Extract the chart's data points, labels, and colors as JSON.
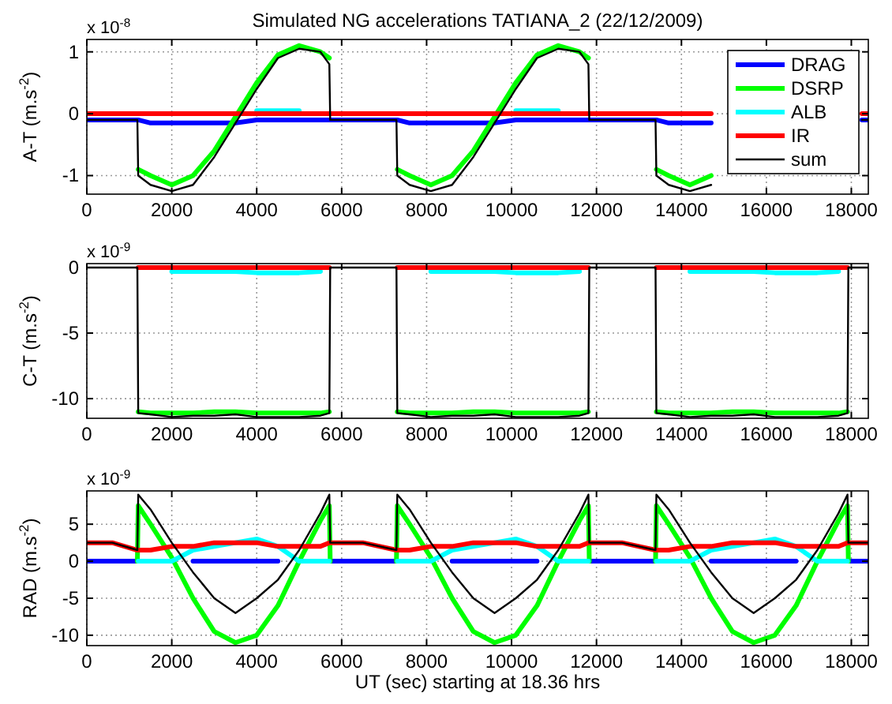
{
  "chart_data": [
    {
      "type": "line",
      "title": "Simulated NG accelerations TATIANA_2 (22/12/2009)",
      "ylabel": "A-T (m.s$^{-2}$)",
      "annotations": [
        "x 10$^{-8}$"
      ],
      "x": [
        0,
        600,
        1190,
        1210,
        1500,
        2000,
        2500,
        3000,
        3500,
        4000,
        4500,
        5000,
        5500,
        5710,
        5730,
        6500,
        7290,
        7310,
        7600,
        8100,
        8600,
        9100,
        9600,
        10100,
        10600,
        11100,
        11600,
        11810,
        11830,
        12600,
        13390,
        13410,
        13700,
        14200,
        14700,
        15200,
        15700,
        16200,
        16700,
        17200,
        17700,
        17910,
        18250,
        18400
      ],
      "xlim": [
        0,
        18400
      ],
      "xticks": [
        0,
        2000,
        4000,
        6000,
        8000,
        10000,
        12000,
        14000,
        16000,
        18000
      ],
      "ylim": [
        -1.3,
        1.2
      ],
      "yticks": [
        -1,
        0,
        1
      ],
      "grid": true,
      "legend": "top right",
      "line_style": "solid",
      "marker": "none",
      "series": [
        {
          "name": "DRAG",
          "color": "#0000ff",
          "values": [
            -0.1,
            -0.1,
            -0.1,
            -0.1,
            -0.15,
            -0.15,
            -0.15,
            -0.15,
            -0.15,
            -0.1,
            -0.1,
            -0.1,
            -0.1,
            -0.1,
            -0.1,
            -0.1,
            -0.1,
            -0.1,
            -0.15,
            -0.15,
            -0.15,
            -0.15,
            -0.15,
            -0.1,
            -0.1,
            -0.1,
            -0.1,
            -0.1,
            -0.1,
            -0.1,
            -0.1,
            -0.1,
            -0.15,
            -0.15,
            -0.15,
            null,
            null,
            null,
            null,
            null,
            null,
            null,
            -0.1,
            -0.1
          ]
        },
        {
          "name": "DSRP",
          "color": "#00ff00",
          "values": [
            null,
            null,
            null,
            -0.9,
            -1.0,
            -1.15,
            -1.0,
            -0.6,
            -0.05,
            0.5,
            0.95,
            1.1,
            1.0,
            0.9,
            null,
            null,
            null,
            -0.9,
            -1.0,
            -1.15,
            -1.0,
            -0.6,
            -0.05,
            0.5,
            0.95,
            1.1,
            1.0,
            0.9,
            null,
            null,
            null,
            -0.9,
            -1.0,
            -1.15,
            -1.0,
            null,
            null,
            null,
            null,
            null,
            null,
            null,
            null,
            null
          ]
        },
        {
          "name": "ALB",
          "color": "#00ffff",
          "values": [
            null,
            null,
            null,
            null,
            null,
            null,
            null,
            null,
            null,
            0.05,
            0.05,
            0.05,
            null,
            null,
            null,
            null,
            null,
            null,
            null,
            null,
            null,
            null,
            null,
            0.05,
            0.05,
            0.05,
            null,
            null,
            null,
            null,
            null,
            null,
            null,
            null,
            null,
            null,
            null,
            null,
            null,
            null,
            null,
            null,
            null,
            null
          ]
        },
        {
          "name": "IR",
          "color": "#ff0000",
          "values": [
            0,
            0,
            0,
            0,
            0,
            0,
            0,
            0,
            0,
            0,
            0,
            0,
            0,
            0,
            0,
            0,
            0,
            0,
            0,
            0,
            0,
            0,
            0,
            0,
            0,
            0,
            0,
            0,
            0,
            0,
            0,
            0,
            0,
            0,
            0,
            null,
            null,
            null,
            null,
            null,
            null,
            null,
            0,
            0
          ]
        },
        {
          "name": "sum",
          "color": "#000000",
          "values": [
            -0.1,
            -0.1,
            -0.1,
            -1.0,
            -1.15,
            -1.25,
            -1.15,
            -0.7,
            -0.15,
            0.4,
            0.9,
            1.05,
            1.0,
            0.8,
            -0.1,
            -0.1,
            -0.1,
            -1.0,
            -1.15,
            -1.25,
            -1.15,
            -0.7,
            -0.15,
            0.4,
            0.9,
            1.05,
            1.0,
            0.8,
            -0.1,
            -0.1,
            -0.1,
            -1.0,
            -1.15,
            -1.25,
            -1.15,
            null,
            null,
            null,
            null,
            null,
            null,
            null,
            -0.1,
            -0.1
          ]
        }
      ]
    },
    {
      "type": "line",
      "ylabel": "C-T (m.s$^{-2}$)",
      "annotations": [
        "x 10$^{-9}$"
      ],
      "x": [
        0,
        600,
        1190,
        1210,
        1500,
        2000,
        2500,
        3000,
        3500,
        4000,
        4500,
        5000,
        5500,
        5710,
        5730,
        6500,
        7290,
        7310,
        7600,
        8100,
        8600,
        9100,
        9600,
        10100,
        10600,
        11100,
        11600,
        11810,
        11830,
        12600,
        13390,
        13410,
        13700,
        14200,
        14700,
        15200,
        15700,
        16200,
        16700,
        17200,
        17700,
        17910,
        17930,
        18400
      ],
      "xlim": [
        0,
        18400
      ],
      "xticks": [
        0,
        2000,
        4000,
        6000,
        8000,
        10000,
        12000,
        14000,
        16000,
        18000
      ],
      "ylim": [
        -11.5,
        0.3
      ],
      "yticks": [
        -10,
        -5,
        0
      ],
      "grid": true,
      "line_style": "solid",
      "marker": "none",
      "series": [
        {
          "color": "#00ff00",
          "values": [
            null,
            null,
            null,
            -11.0,
            -11.1,
            -11.1,
            -11.1,
            -11.0,
            -11.0,
            -11.1,
            -11.1,
            -11.1,
            -11.1,
            -11.0,
            null,
            null,
            null,
            -11.0,
            -11.1,
            -11.1,
            -11.1,
            -11.0,
            -11.0,
            -11.1,
            -11.1,
            -11.1,
            -11.1,
            -11.0,
            null,
            null,
            null,
            -11.0,
            -11.1,
            -11.1,
            -11.1,
            -11.0,
            -11.0,
            -11.1,
            -11.1,
            -11.1,
            -11.1,
            -11.0,
            null,
            null
          ]
        },
        {
          "color": "#00ffff",
          "values": [
            null,
            null,
            null,
            null,
            null,
            -0.3,
            -0.3,
            -0.3,
            -0.3,
            -0.4,
            -0.4,
            -0.4,
            -0.3,
            null,
            null,
            null,
            null,
            null,
            null,
            -0.3,
            -0.3,
            -0.3,
            -0.3,
            -0.4,
            -0.4,
            -0.4,
            -0.3,
            null,
            null,
            null,
            null,
            null,
            null,
            -0.3,
            -0.3,
            -0.3,
            -0.3,
            -0.4,
            -0.4,
            -0.4,
            -0.3,
            null,
            null,
            null
          ]
        },
        {
          "color": "#ff0000",
          "values": [
            null,
            null,
            null,
            0,
            0,
            0,
            0,
            0,
            0,
            0,
            0,
            0,
            0,
            0,
            null,
            null,
            null,
            0,
            0,
            0,
            0,
            0,
            0,
            0,
            0,
            0,
            0,
            0,
            null,
            null,
            null,
            0,
            0,
            0,
            0,
            0,
            0,
            0,
            0,
            0,
            0,
            0,
            null,
            null
          ]
        },
        {
          "color": "#000000",
          "values": [
            0,
            0,
            0,
            -11.1,
            -11.2,
            -11.4,
            -11.3,
            -11.3,
            -11.2,
            -11.4,
            -11.4,
            -11.4,
            -11.3,
            -11.1,
            0,
            0,
            0,
            -11.1,
            -11.2,
            -11.4,
            -11.3,
            -11.3,
            -11.2,
            -11.4,
            -11.4,
            -11.4,
            -11.3,
            -11.1,
            0,
            0,
            0,
            -11.1,
            -11.2,
            -11.4,
            -11.3,
            -11.3,
            -11.2,
            -11.4,
            -11.4,
            -11.4,
            -11.3,
            -11.1,
            0,
            0
          ]
        }
      ]
    },
    {
      "type": "line",
      "ylabel": "RAD (m.s$^{-2}$)",
      "xlabel": "UT (sec) starting at 18.36 hrs",
      "annotations": [
        "x 10$^{-9}$"
      ],
      "x": [
        0,
        600,
        1190,
        1210,
        1500,
        2000,
        2500,
        3000,
        3500,
        4000,
        4500,
        5000,
        5500,
        5710,
        5730,
        6500,
        7290,
        7310,
        7600,
        8100,
        8600,
        9100,
        9600,
        10100,
        10600,
        11100,
        11600,
        11810,
        11830,
        12600,
        13390,
        13410,
        13700,
        14200,
        14700,
        15200,
        15700,
        16200,
        16700,
        17200,
        17700,
        17910,
        17930,
        18400
      ],
      "xlim": [
        0,
        18400
      ],
      "xticks": [
        0,
        2000,
        4000,
        6000,
        8000,
        10000,
        12000,
        14000,
        16000,
        18000
      ],
      "ylim": [
        -11.4,
        9.5
      ],
      "yticks": [
        -10,
        -5,
        0,
        5
      ],
      "grid": true,
      "line_style": "solid",
      "marker": "none",
      "series": [
        {
          "color": "#0000ff",
          "values": [
            0,
            0,
            0,
            null,
            null,
            null,
            0,
            0,
            0,
            0,
            0,
            null,
            null,
            null,
            0,
            0,
            0,
            null,
            null,
            null,
            0,
            0,
            0,
            0,
            0,
            null,
            null,
            null,
            0,
            0,
            0,
            null,
            null,
            null,
            0,
            0,
            0,
            0,
            0,
            null,
            null,
            null,
            0,
            0
          ]
        },
        {
          "color": "#00ff00",
          "values": [
            null,
            null,
            0,
            7.5,
            5.0,
            0.5,
            -5.0,
            -9.5,
            -11.0,
            -10.0,
            -6.0,
            0,
            5.5,
            7.5,
            0,
            null,
            0,
            7.5,
            5.0,
            0.5,
            -5.0,
            -9.5,
            -11.0,
            -10.0,
            -6.0,
            0,
            5.5,
            7.5,
            0,
            null,
            0,
            7.5,
            5.0,
            0.5,
            -5.0,
            -9.5,
            -11.0,
            -10.0,
            -6.0,
            0,
            5.5,
            7.5,
            0,
            null
          ]
        },
        {
          "color": "#00ffff",
          "values": [
            null,
            null,
            null,
            0,
            0,
            0,
            1.5,
            2.0,
            2.5,
            3.0,
            2.0,
            0,
            0,
            0,
            null,
            null,
            null,
            0,
            0,
            0,
            1.5,
            2.0,
            2.5,
            3.0,
            2.0,
            0,
            0,
            0,
            null,
            null,
            null,
            0,
            0,
            0,
            1.5,
            2.0,
            2.5,
            3.0,
            2.0,
            0,
            0,
            0,
            null,
            null
          ]
        },
        {
          "color": "#ff0000",
          "values": [
            2.5,
            2.5,
            1.5,
            1.5,
            1.5,
            2.0,
            2.0,
            2.5,
            2.5,
            2.5,
            2.0,
            2.0,
            2.0,
            2.5,
            2.5,
            2.5,
            1.5,
            1.5,
            1.5,
            2.0,
            2.0,
            2.5,
            2.5,
            2.5,
            2.0,
            2.0,
            2.0,
            2.5,
            2.5,
            2.5,
            1.5,
            1.5,
            1.5,
            2.0,
            2.0,
            2.5,
            2.5,
            2.5,
            2.0,
            2.0,
            2.0,
            2.5,
            2.5,
            2.5
          ]
        },
        {
          "color": "#000000",
          "values": [
            2.5,
            2.5,
            1.5,
            9.0,
            7.0,
            2.5,
            -1.5,
            -5.0,
            -7.0,
            -5.0,
            -2.5,
            1.5,
            6.5,
            9.0,
            2.5,
            2.5,
            1.5,
            9.0,
            7.0,
            2.5,
            -1.5,
            -5.0,
            -7.0,
            -5.0,
            -2.5,
            1.5,
            6.5,
            9.0,
            2.5,
            2.5,
            1.5,
            9.0,
            7.0,
            2.5,
            -1.5,
            -5.0,
            -7.0,
            -5.0,
            -2.5,
            1.5,
            6.5,
            9.0,
            2.5,
            2.5
          ]
        }
      ]
    }
  ]
}
